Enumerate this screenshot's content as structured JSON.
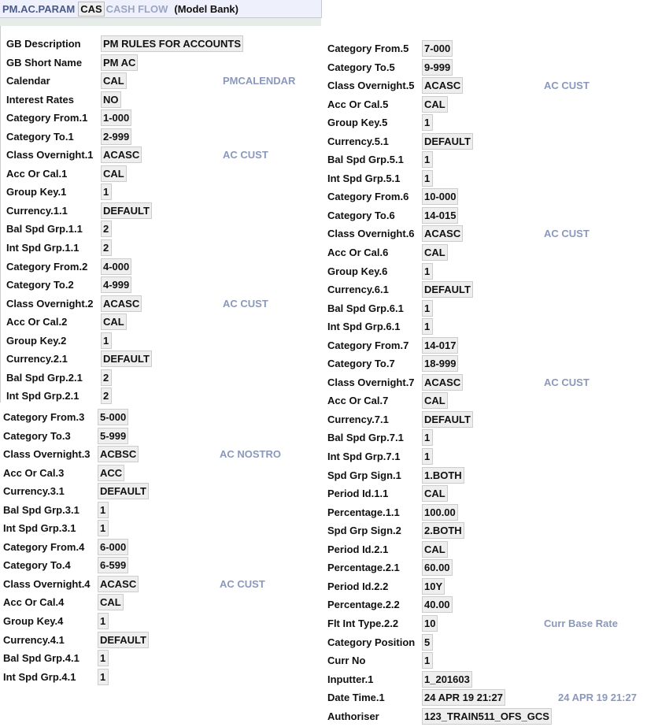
{
  "header": {
    "app": "PM.AC.PARAM",
    "id": "CAS",
    "subtitle": "CASH FLOW",
    "company": "(Model Bank)"
  },
  "block1": [
    {
      "label": "GB Description",
      "value": "PM RULES FOR ACCOUNTS"
    },
    {
      "label": "GB Short Name",
      "value": "PM AC"
    },
    {
      "label": "Calendar",
      "value": "CAL",
      "desc": "PMCALENDAR"
    },
    {
      "label": "Interest Rates",
      "value": "NO"
    },
    {
      "label": "Category From.1",
      "value": "1-000"
    },
    {
      "label": "Category To.1",
      "value": "2-999"
    },
    {
      "label": "Class Overnight.1",
      "value": "ACASC",
      "desc": "AC CUST"
    },
    {
      "label": "Acc Or Cal.1",
      "value": "CAL"
    },
    {
      "label": "Group Key.1",
      "value": "1"
    },
    {
      "label": "Currency.1.1",
      "value": "DEFAULT"
    },
    {
      "label": "Bal Spd Grp.1.1",
      "value": "2"
    },
    {
      "label": "Int Spd Grp.1.1",
      "value": "2"
    },
    {
      "label": "Category From.2",
      "value": "4-000"
    },
    {
      "label": "Category To.2",
      "value": "4-999"
    },
    {
      "label": "Class Overnight.2",
      "value": "ACASC",
      "desc": "AC CUST"
    },
    {
      "label": "Acc Or Cal.2",
      "value": "CAL"
    },
    {
      "label": "Group Key.2",
      "value": "1"
    },
    {
      "label": "Currency.2.1",
      "value": "DEFAULT"
    },
    {
      "label": "Bal Spd Grp.2.1",
      "value": "2"
    },
    {
      "label": "Int Spd Grp.2.1",
      "value": "2"
    }
  ],
  "block2": [
    {
      "label": "Category From.3",
      "value": "5-000"
    },
    {
      "label": "Category To.3",
      "value": "5-999"
    },
    {
      "label": "Class Overnight.3",
      "value": "ACBSC",
      "desc": "AC NOSTRO"
    },
    {
      "label": "Acc Or Cal.3",
      "value": "ACC"
    },
    {
      "label": "Currency.3.1",
      "value": "DEFAULT"
    },
    {
      "label": "Bal Spd Grp.3.1",
      "value": "1"
    },
    {
      "label": "Int Spd Grp.3.1",
      "value": "1"
    },
    {
      "label": "Category From.4",
      "value": "6-000"
    },
    {
      "label": "Category To.4",
      "value": "6-599"
    },
    {
      "label": "Class Overnight.4",
      "value": "ACASC",
      "desc": "AC CUST"
    },
    {
      "label": "Acc Or Cal.4",
      "value": "CAL"
    },
    {
      "label": "Group Key.4",
      "value": "1"
    },
    {
      "label": "Currency.4.1",
      "value": "DEFAULT"
    },
    {
      "label": "Bal Spd Grp.4.1",
      "value": "1"
    },
    {
      "label": "Int Spd Grp.4.1",
      "value": "1"
    }
  ],
  "block3": [
    {
      "label": "Category From.5",
      "value": "7-000"
    },
    {
      "label": "Category To.5",
      "value": "9-999"
    },
    {
      "label": "Class Overnight.5",
      "value": "ACASC",
      "desc": "AC CUST"
    },
    {
      "label": "Acc Or Cal.5",
      "value": "CAL"
    },
    {
      "label": "Group Key.5",
      "value": "1"
    },
    {
      "label": "Currency.5.1",
      "value": "DEFAULT"
    },
    {
      "label": "Bal Spd Grp.5.1",
      "value": "1"
    },
    {
      "label": "Int Spd Grp.5.1",
      "value": "1"
    },
    {
      "label": "Category From.6",
      "value": "10-000"
    },
    {
      "label": "Category To.6",
      "value": "14-015"
    },
    {
      "label": "Class Overnight.6",
      "value": "ACASC",
      "desc": "AC CUST"
    },
    {
      "label": "Acc Or Cal.6",
      "value": "CAL"
    },
    {
      "label": "Group Key.6",
      "value": "1"
    },
    {
      "label": "Currency.6.1",
      "value": "DEFAULT"
    },
    {
      "label": "Bal Spd Grp.6.1",
      "value": "1"
    },
    {
      "label": "Int Spd Grp.6.1",
      "value": "1"
    },
    {
      "label": "Category From.7",
      "value": "14-017"
    },
    {
      "label": "Category To.7",
      "value": "18-999"
    },
    {
      "label": "Class Overnight.7",
      "value": "ACASC",
      "desc": "AC CUST"
    },
    {
      "label": "Acc Or Cal.7",
      "value": "CAL"
    },
    {
      "label": "Currency.7.1",
      "value": "DEFAULT"
    },
    {
      "label": "Bal Spd Grp.7.1",
      "value": "1"
    },
    {
      "label": "Int Spd Grp.7.1",
      "value": "1"
    },
    {
      "label": "Spd Grp Sign.1",
      "value": "1.BOTH"
    },
    {
      "label": "Period Id.1.1",
      "value": "CAL"
    },
    {
      "label": "Percentage.1.1",
      "value": "100.00"
    },
    {
      "label": "Spd Grp Sign.2",
      "value": "2.BOTH"
    },
    {
      "label": "Period Id.2.1",
      "value": "CAL"
    },
    {
      "label": "Percentage.2.1",
      "value": "60.00"
    },
    {
      "label": "Period Id.2.2",
      "value": "10Y"
    },
    {
      "label": "Percentage.2.2",
      "value": "40.00"
    },
    {
      "label": "Flt Int Type.2.2",
      "value": "10",
      "desc": "Curr Base Rate"
    },
    {
      "label": "Category Position",
      "value": "5"
    },
    {
      "label": "Curr No",
      "value": "1"
    },
    {
      "label": "Inputter.1",
      "value": "1_201603"
    },
    {
      "label": "Date Time.1",
      "value": "24 APR 19 21:27",
      "desc": "24 APR 19 21:27"
    },
    {
      "label": "Authoriser",
      "value": "123_TRAIN511_OFS_GCS"
    }
  ]
}
